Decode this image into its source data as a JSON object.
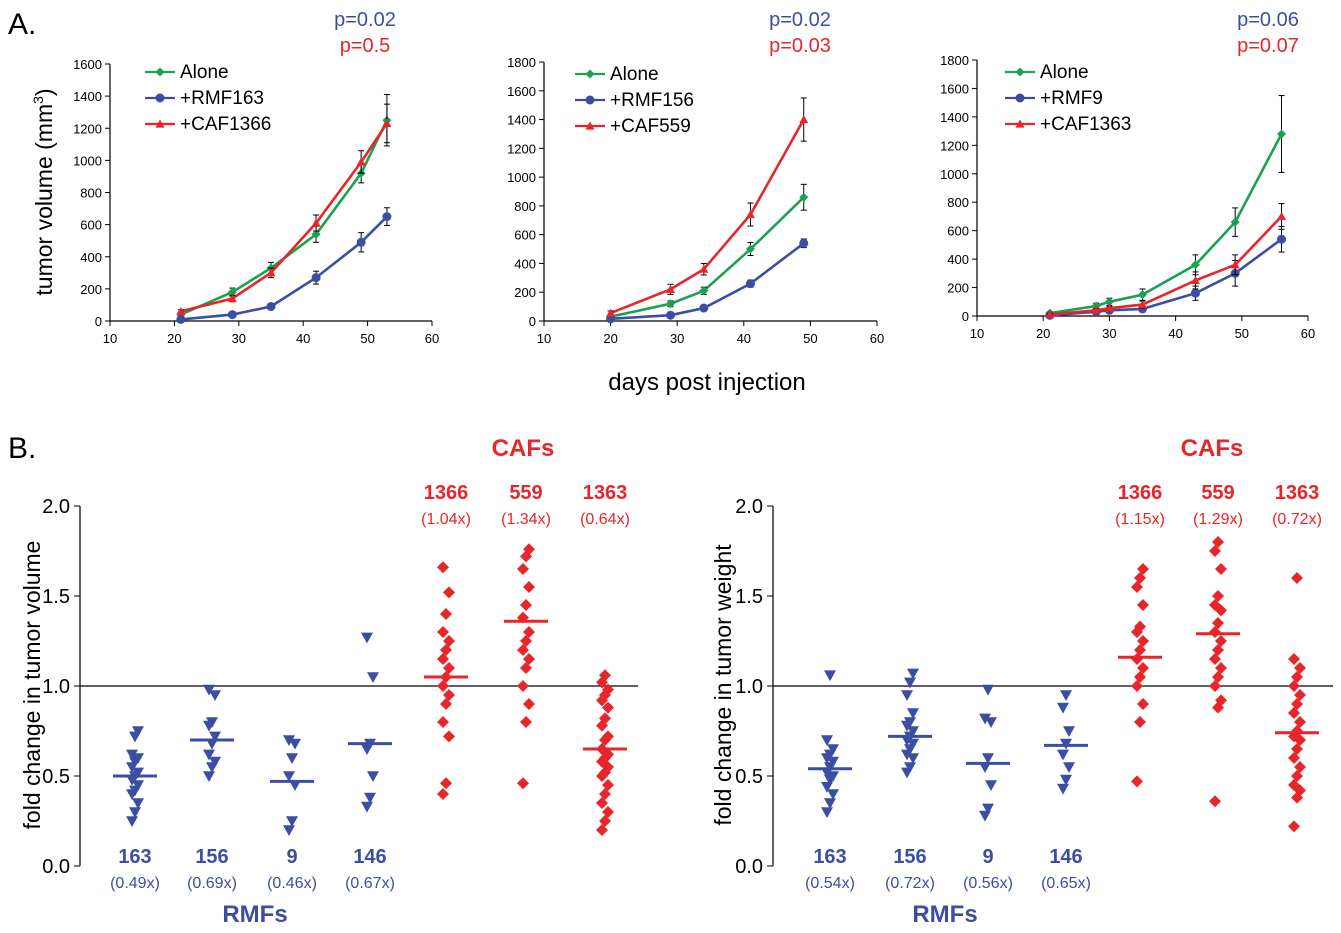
{
  "colors": {
    "blue": "#3b4ea3",
    "red": "#e8252a",
    "green": "#1aa152",
    "black": "#000000"
  },
  "panel_labels": {
    "a": "A.",
    "b": "B."
  },
  "shared_labels": {
    "ylabel_a": "tumor volume (mm",
    "ylabel_a_sup": "3",
    "ylabel_a_close": ")",
    "xlabel_a": "days post injection",
    "ylabel_b1": "fold change in tumor volume",
    "ylabel_b2": "fold change in tumor weight",
    "cafs_label": "CAFs",
    "rmfs_label": "RMFs"
  },
  "chart_data": [
    {
      "type": "line",
      "panel": "A1",
      "xlim": [
        10,
        60
      ],
      "ylim": [
        0,
        1600
      ],
      "xticks": [
        10,
        20,
        30,
        40,
        50,
        60
      ],
      "yticks": [
        0,
        200,
        400,
        600,
        800,
        1000,
        1200,
        1400,
        1600
      ],
      "p_values": [
        {
          "text": "p=0.02",
          "color": "blue"
        },
        {
          "text": "p=0.5",
          "color": "red"
        }
      ],
      "series": [
        {
          "name": "Alone",
          "color": "green",
          "marker": "diamond",
          "x": [
            21,
            29,
            35,
            42,
            49,
            53
          ],
          "y": [
            40,
            180,
            330,
            540,
            920,
            1250
          ],
          "err": [
            15,
            25,
            35,
            50,
            60,
            160
          ]
        },
        {
          "name": "+RMF163",
          "color": "blue",
          "marker": "circle",
          "x": [
            21,
            29,
            35,
            42,
            49,
            53
          ],
          "y": [
            10,
            40,
            90,
            270,
            490,
            650
          ],
          "err": [
            5,
            10,
            15,
            40,
            60,
            55
          ]
        },
        {
          "name": "+CAF1366",
          "color": "red",
          "marker": "triangle",
          "x": [
            21,
            29,
            35,
            42,
            49,
            53
          ],
          "y": [
            60,
            140,
            300,
            610,
            990,
            1230
          ],
          "err": [
            10,
            20,
            30,
            50,
            70,
            120
          ]
        }
      ]
    },
    {
      "type": "line",
      "panel": "A2",
      "xlim": [
        10,
        60
      ],
      "ylim": [
        0,
        1800
      ],
      "xticks": [
        10,
        20,
        30,
        40,
        50,
        60
      ],
      "yticks": [
        0,
        200,
        400,
        600,
        800,
        1000,
        1200,
        1400,
        1600,
        1800
      ],
      "p_values": [
        {
          "text": "p=0.02",
          "color": "blue"
        },
        {
          "text": "p=0.03",
          "color": "red"
        }
      ],
      "series": [
        {
          "name": "Alone",
          "color": "green",
          "marker": "diamond",
          "x": [
            20,
            29,
            34,
            41,
            49
          ],
          "y": [
            30,
            120,
            210,
            500,
            860
          ],
          "err": [
            10,
            20,
            25,
            45,
            90
          ]
        },
        {
          "name": "+RMF156",
          "color": "blue",
          "marker": "circle",
          "x": [
            20,
            29,
            34,
            41,
            49
          ],
          "y": [
            15,
            40,
            90,
            260,
            540
          ],
          "err": [
            5,
            8,
            12,
            25,
            30
          ]
        },
        {
          "name": "+CAF559",
          "color": "red",
          "marker": "triangle",
          "x": [
            20,
            29,
            34,
            41,
            49
          ],
          "y": [
            55,
            220,
            360,
            740,
            1400
          ],
          "err": [
            15,
            35,
            40,
            80,
            150
          ]
        }
      ]
    },
    {
      "type": "line",
      "panel": "A3",
      "xlim": [
        10,
        60
      ],
      "ylim": [
        0,
        1800
      ],
      "xticks": [
        10,
        20,
        30,
        40,
        50,
        60
      ],
      "yticks": [
        0,
        200,
        400,
        600,
        800,
        1000,
        1200,
        1400,
        1600,
        1800
      ],
      "p_values": [
        {
          "text": "p=0.06",
          "color": "blue"
        },
        {
          "text": "p=0.07",
          "color": "red"
        }
      ],
      "series": [
        {
          "name": "Alone",
          "color": "green",
          "marker": "diamond",
          "x": [
            21,
            28,
            30,
            35,
            43,
            49,
            56
          ],
          "y": [
            20,
            70,
            100,
            150,
            360,
            660,
            1280
          ],
          "err": [
            8,
            20,
            25,
            40,
            70,
            100,
            270
          ]
        },
        {
          "name": "+RMF9",
          "color": "blue",
          "marker": "circle",
          "x": [
            21,
            28,
            30,
            35,
            43,
            49,
            56
          ],
          "y": [
            5,
            30,
            40,
            50,
            160,
            300,
            540
          ],
          "err": [
            4,
            10,
            12,
            20,
            50,
            90,
            90
          ]
        },
        {
          "name": "+CAF1363",
          "color": "red",
          "marker": "triangle",
          "x": [
            21,
            28,
            30,
            35,
            43,
            49,
            56
          ],
          "y": [
            10,
            40,
            55,
            80,
            250,
            360,
            700
          ],
          "err": [
            5,
            12,
            15,
            25,
            60,
            70,
            90
          ]
        }
      ]
    },
    {
      "type": "scatter",
      "panel": "B1",
      "ylim": [
        0,
        2.0
      ],
      "yticks": [
        "0.0",
        "0.5",
        "1.0",
        "1.5",
        "2.0"
      ],
      "reference_line": 1.0,
      "groups": [
        {
          "label": "163",
          "sub": "(0.49x)",
          "color": "blue",
          "marker": "triangle-down",
          "median": 0.5,
          "values": [
            0.25,
            0.3,
            0.35,
            0.4,
            0.42,
            0.45,
            0.48,
            0.5,
            0.52,
            0.55,
            0.58,
            0.6,
            0.62,
            0.72,
            0.75
          ]
        },
        {
          "label": "156",
          "sub": "(0.69x)",
          "color": "blue",
          "marker": "triangle-down",
          "median": 0.7,
          "values": [
            0.5,
            0.55,
            0.58,
            0.62,
            0.68,
            0.72,
            0.78,
            0.8,
            0.95,
            0.98
          ]
        },
        {
          "label": "9",
          "sub": "(0.46x)",
          "color": "blue",
          "marker": "triangle-down",
          "median": 0.47,
          "values": [
            0.2,
            0.25,
            0.45,
            0.5,
            0.6,
            0.68,
            0.7
          ]
        },
        {
          "label": "146",
          "sub": "(0.67x)",
          "color": "blue",
          "marker": "triangle-down",
          "median": 0.68,
          "values": [
            0.33,
            0.38,
            0.5,
            0.65,
            0.68,
            1.05,
            1.27
          ]
        },
        {
          "label": "1366",
          "sub": "(1.04x)",
          "color": "red",
          "marker": "diamond",
          "median": 1.05,
          "values": [
            0.4,
            0.46,
            0.72,
            0.8,
            0.9,
            0.95,
            1.0,
            1.05,
            1.1,
            1.15,
            1.2,
            1.25,
            1.3,
            1.4,
            1.52,
            1.66
          ]
        },
        {
          "label": "559",
          "sub": "(1.34x)",
          "color": "red",
          "marker": "diamond",
          "median": 1.36,
          "values": [
            0.46,
            0.8,
            0.9,
            1.0,
            1.1,
            1.15,
            1.2,
            1.25,
            1.3,
            1.38,
            1.45,
            1.55,
            1.65,
            1.72,
            1.76
          ]
        },
        {
          "label": "1363",
          "sub": "(0.64x)",
          "color": "red",
          "marker": "diamond",
          "median": 0.65,
          "values": [
            0.2,
            0.25,
            0.3,
            0.35,
            0.4,
            0.45,
            0.5,
            0.52,
            0.55,
            0.58,
            0.6,
            0.62,
            0.65,
            0.7,
            0.72,
            0.78,
            0.82,
            0.88,
            0.92,
            0.95,
            0.98,
            1.02,
            1.06
          ]
        }
      ]
    },
    {
      "type": "scatter",
      "panel": "B2",
      "ylim": [
        0,
        2.0
      ],
      "yticks": [
        "0.0",
        "0.5",
        "1.0",
        "1.5",
        "2.0"
      ],
      "reference_line": 1.0,
      "groups": [
        {
          "label": "163",
          "sub": "(0.54x)",
          "color": "blue",
          "marker": "triangle-down",
          "median": 0.54,
          "values": [
            0.3,
            0.35,
            0.4,
            0.44,
            0.48,
            0.5,
            0.52,
            0.55,
            0.58,
            0.6,
            0.62,
            0.65,
            0.7,
            1.06
          ]
        },
        {
          "label": "156",
          "sub": "(0.72x)",
          "color": "blue",
          "marker": "triangle-down",
          "median": 0.72,
          "values": [
            0.52,
            0.55,
            0.6,
            0.62,
            0.65,
            0.68,
            0.7,
            0.72,
            0.75,
            0.78,
            0.8,
            0.85,
            0.95,
            1.02,
            1.07
          ]
        },
        {
          "label": "9",
          "sub": "(0.56x)",
          "color": "blue",
          "marker": "triangle-down",
          "median": 0.57,
          "values": [
            0.28,
            0.32,
            0.45,
            0.55,
            0.6,
            0.8,
            0.82,
            0.98
          ]
        },
        {
          "label": "146",
          "sub": "(0.65x)",
          "color": "blue",
          "marker": "triangle-down",
          "median": 0.67,
          "values": [
            0.43,
            0.48,
            0.55,
            0.62,
            0.68,
            0.75,
            0.88,
            0.95
          ]
        },
        {
          "label": "1366",
          "sub": "(1.15x)",
          "color": "red",
          "marker": "diamond",
          "median": 1.16,
          "values": [
            0.47,
            0.8,
            0.9,
            1.0,
            1.05,
            1.1,
            1.15,
            1.2,
            1.25,
            1.3,
            1.33,
            1.45,
            1.55,
            1.6,
            1.65
          ]
        },
        {
          "label": "559",
          "sub": "(1.29x)",
          "color": "red",
          "marker": "diamond",
          "median": 1.29,
          "values": [
            0.36,
            0.88,
            0.92,
            1.0,
            1.05,
            1.1,
            1.15,
            1.2,
            1.25,
            1.3,
            1.35,
            1.42,
            1.45,
            1.5,
            1.65,
            1.75,
            1.8
          ]
        },
        {
          "label": "1363",
          "sub": "(0.72x)",
          "color": "red",
          "marker": "diamond",
          "median": 0.74,
          "values": [
            0.22,
            0.38,
            0.42,
            0.45,
            0.5,
            0.55,
            0.6,
            0.65,
            0.7,
            0.72,
            0.75,
            0.8,
            0.85,
            0.9,
            0.95,
            1.0,
            1.05,
            1.1,
            1.15,
            1.6
          ]
        }
      ]
    }
  ]
}
